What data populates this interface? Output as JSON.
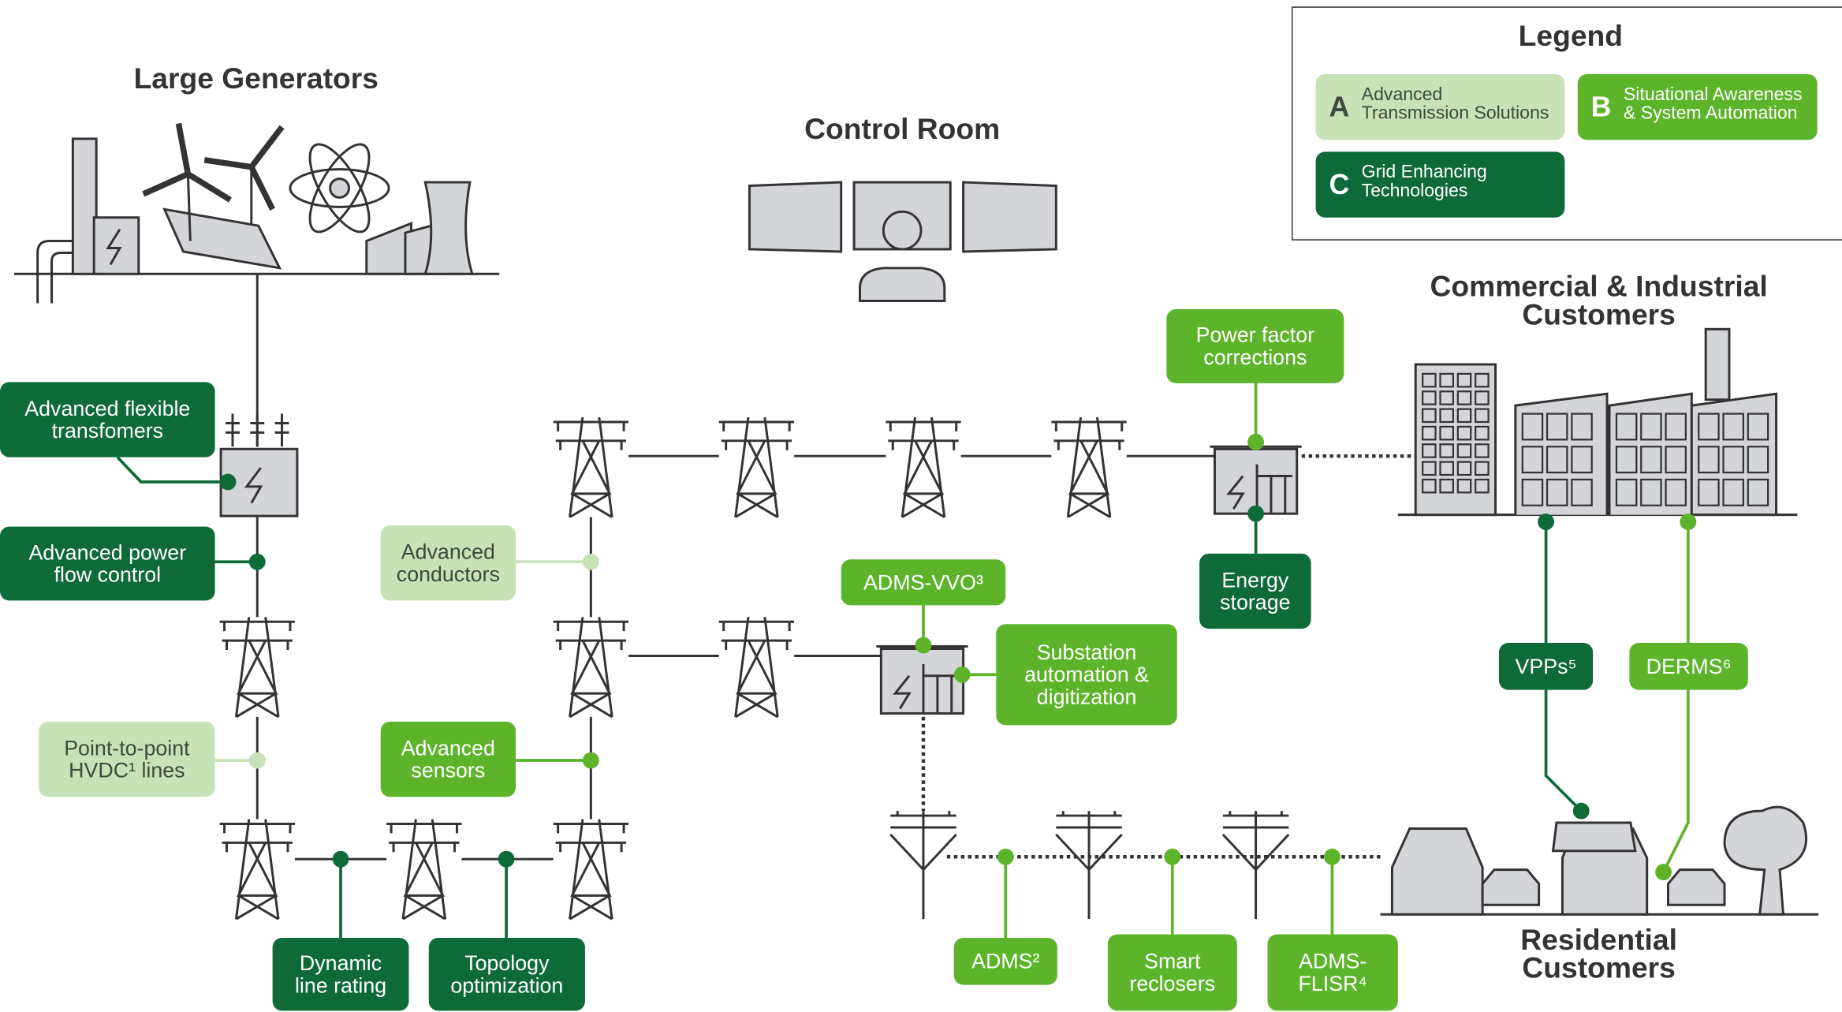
{
  "legend": {
    "title": "Legend",
    "items": [
      {
        "letter": "A",
        "lines": [
          "Advanced",
          "Transmission Solutions"
        ],
        "color": "#c6e2b6"
      },
      {
        "letter": "B",
        "lines": [
          "Situational Awareness",
          "& System Automation"
        ],
        "color": "#5db42b"
      },
      {
        "letter": "C",
        "lines": [
          "Grid Enhancing",
          "Technologies"
        ],
        "color": "#0e6a36"
      }
    ]
  },
  "sections": [
    {
      "lines": [
        "Large Generators"
      ]
    },
    {
      "lines": [
        "Control Room"
      ]
    },
    {
      "lines": [
        "Commercial & Industrial",
        "Customers"
      ]
    },
    {
      "lines": [
        "Residential",
        "Customers"
      ]
    }
  ],
  "labels": [
    {
      "lines": [
        "Advanced flexible",
        "transfomers"
      ],
      "color": "#0e6a36"
    },
    {
      "lines": [
        "Advanced power",
        "flow control"
      ],
      "color": "#0e6a36"
    },
    {
      "lines": [
        "Point-to-point",
        "HVDC¹ lines"
      ],
      "color": "#c6e2b6"
    },
    {
      "lines": [
        "Dynamic",
        "line rating"
      ],
      "color": "#0e6a36"
    },
    {
      "lines": [
        "Topology",
        "optimization"
      ],
      "color": "#0e6a36"
    },
    {
      "lines": [
        "Advanced",
        "conductors"
      ],
      "color": "#c6e2b6"
    },
    {
      "lines": [
        "Advanced",
        "sensors"
      ],
      "color": "#5db42b"
    },
    {
      "lines": [
        "ADMS-VVO³"
      ],
      "color": "#5db42b"
    },
    {
      "lines": [
        "Substation",
        "automation &",
        "digitization"
      ],
      "color": "#5db42b"
    },
    {
      "lines": [
        "Power factor",
        "corrections"
      ],
      "color": "#5db42b"
    },
    {
      "lines": [
        "Energy",
        "storage"
      ],
      "color": "#0e6a36"
    },
    {
      "lines": [
        "VPPs⁵"
      ],
      "color": "#0e6a36"
    },
    {
      "lines": [
        "DERMS⁶"
      ],
      "color": "#5db42b"
    },
    {
      "lines": [
        "ADMS²"
      ],
      "color": "#5db42b"
    },
    {
      "lines": [
        "Smart",
        "reclosers"
      ],
      "color": "#5db42b"
    },
    {
      "lines": [
        "ADMS-",
        "FLISR⁴"
      ],
      "color": "#5db42b"
    }
  ]
}
